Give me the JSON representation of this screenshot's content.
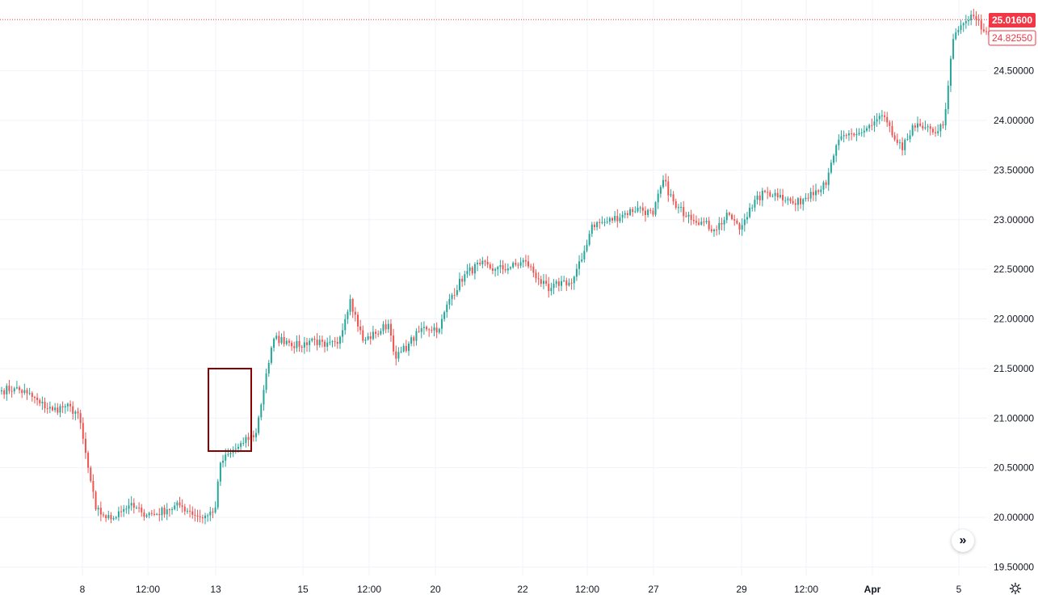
{
  "chart_data": {
    "type": "candlestick",
    "title": "",
    "xlabel": "",
    "ylabel": "",
    "ylim": [
      19.35,
      25.15
    ],
    "grid": true,
    "colors": {
      "up": "#26a69a",
      "down": "#ef5350",
      "grid": "#f0f3fa",
      "box": "#8b0000",
      "text": "#131722",
      "current_price": "#f23645"
    },
    "y_ticks": [
      "19.50000",
      "20.00000",
      "20.50000",
      "21.00000",
      "21.50000",
      "22.00000",
      "22.50000",
      "23.00000",
      "23.50000",
      "24.00000",
      "24.50000"
    ],
    "x_ticks": [
      "8",
      "12:00",
      "13",
      "15",
      "12:00",
      "20",
      "22",
      "12:00",
      "27",
      "29",
      "12:00",
      "Apr",
      "5"
    ],
    "price_labels": {
      "current": "25.01600",
      "secondary": "24.82550"
    },
    "anchors": [
      [
        0,
        21.28
      ],
      [
        5,
        21.3
      ],
      [
        10,
        21.25
      ],
      [
        15,
        21.15
      ],
      [
        20,
        21.08
      ],
      [
        25,
        21.12
      ],
      [
        30,
        21.05
      ],
      [
        34,
        20.5
      ],
      [
        37,
        20.08
      ],
      [
        40,
        20.02
      ],
      [
        43,
        19.98
      ],
      [
        46,
        20.06
      ],
      [
        50,
        20.12
      ],
      [
        55,
        20.05
      ],
      [
        60,
        20.03
      ],
      [
        65,
        20.08
      ],
      [
        70,
        20.12
      ],
      [
        74,
        20.06
      ],
      [
        78,
        20.0
      ],
      [
        81,
        20.02
      ],
      [
        84,
        20.1
      ],
      [
        86,
        20.55
      ],
      [
        90,
        20.65
      ],
      [
        95,
        20.75
      ],
      [
        100,
        20.85
      ],
      [
        104,
        21.45
      ],
      [
        107,
        21.8
      ],
      [
        112,
        21.78
      ],
      [
        117,
        21.72
      ],
      [
        122,
        21.8
      ],
      [
        127,
        21.72
      ],
      [
        132,
        21.75
      ],
      [
        137,
        22.2
      ],
      [
        142,
        21.78
      ],
      [
        147,
        21.85
      ],
      [
        152,
        21.95
      ],
      [
        155,
        21.6
      ],
      [
        160,
        21.75
      ],
      [
        166,
        21.92
      ],
      [
        172,
        21.9
      ],
      [
        176,
        22.2
      ],
      [
        182,
        22.45
      ],
      [
        188,
        22.55
      ],
      [
        194,
        22.5
      ],
      [
        200,
        22.52
      ],
      [
        206,
        22.58
      ],
      [
        211,
        22.4
      ],
      [
        215,
        22.28
      ],
      [
        220,
        22.38
      ],
      [
        224,
        22.36
      ],
      [
        228,
        22.6
      ],
      [
        232,
        22.95
      ],
      [
        238,
        22.98
      ],
      [
        244,
        23.05
      ],
      [
        250,
        23.12
      ],
      [
        256,
        23.05
      ],
      [
        260,
        23.4
      ],
      [
        265,
        23.12
      ],
      [
        270,
        23.05
      ],
      [
        275,
        22.98
      ],
      [
        280,
        22.9
      ],
      [
        286,
        23.05
      ],
      [
        290,
        22.9
      ],
      [
        294,
        23.12
      ],
      [
        300,
        23.28
      ],
      [
        306,
        23.25
      ],
      [
        312,
        23.15
      ],
      [
        318,
        23.28
      ],
      [
        324,
        23.35
      ],
      [
        328,
        23.75
      ],
      [
        332,
        23.85
      ],
      [
        338,
        23.88
      ],
      [
        342,
        23.95
      ],
      [
        346,
        24.05
      ],
      [
        350,
        23.85
      ],
      [
        354,
        23.7
      ],
      [
        358,
        23.95
      ],
      [
        362,
        23.92
      ],
      [
        366,
        23.88
      ],
      [
        370,
        23.95
      ],
      [
        372,
        24.35
      ],
      [
        374,
        24.82
      ],
      [
        378,
        24.98
      ],
      [
        382,
        25.05
      ],
      [
        386,
        24.9
      ],
      [
        388,
        24.86
      ]
    ]
  }
}
